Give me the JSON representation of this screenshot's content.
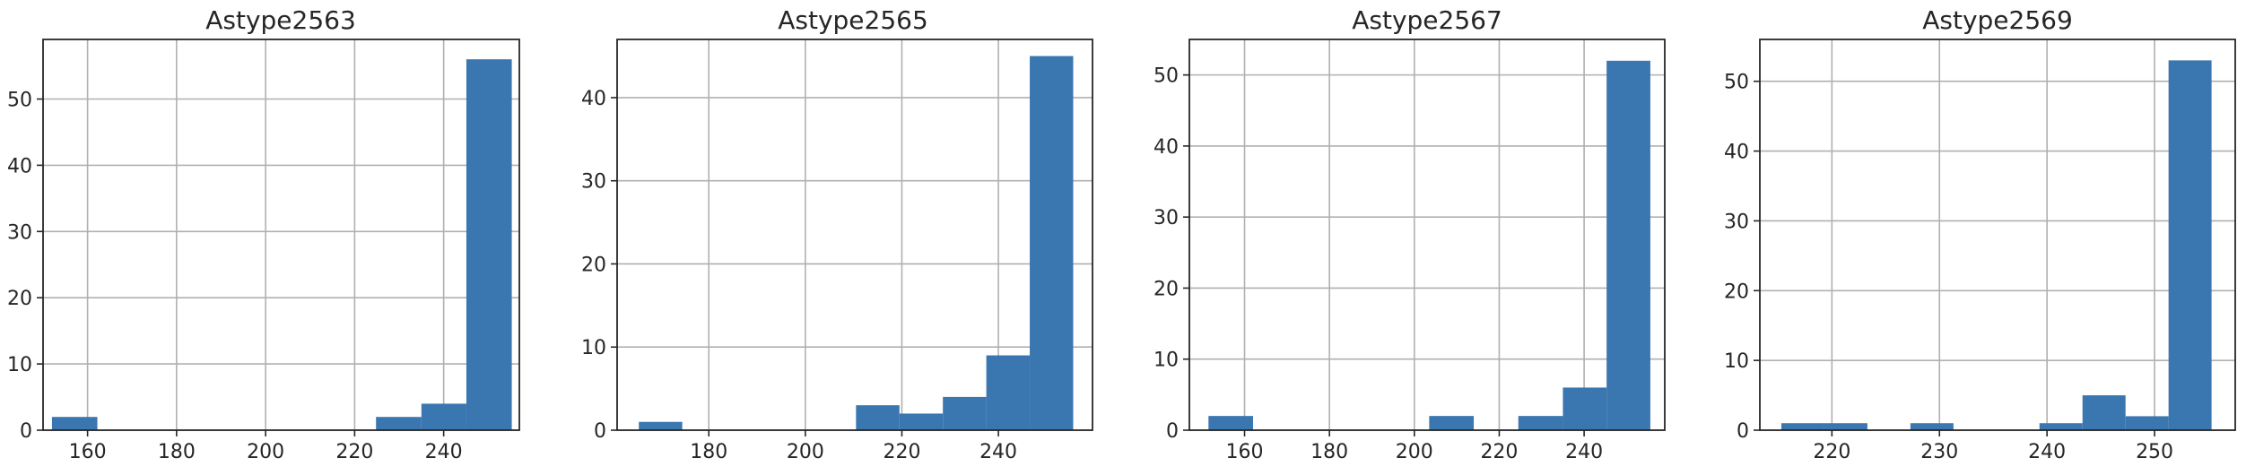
{
  "chart_data": [
    {
      "type": "bar",
      "title": "Astype2563",
      "xlim": [
        150,
        257
      ],
      "ylim": [
        0,
        59
      ],
      "xticks": [
        160,
        180,
        200,
        220,
        240,
        260
      ],
      "yticks": [
        0,
        10,
        20,
        30,
        40,
        50
      ],
      "bins": [
        {
          "x0": 152,
          "x1": 162.2,
          "value": 2
        },
        {
          "x0": 224.8,
          "x1": 235,
          "value": 2
        },
        {
          "x0": 235,
          "x1": 245.1,
          "value": 4
        },
        {
          "x0": 245.1,
          "x1": 255.3,
          "value": 56
        }
      ],
      "grid": true,
      "color": "#3a76b0"
    },
    {
      "type": "bar",
      "title": "Astype2565",
      "xlim": [
        161,
        259.5
      ],
      "ylim": [
        0,
        47
      ],
      "xticks": [
        180,
        200,
        220,
        240
      ],
      "yticks": [
        0,
        10,
        20,
        30,
        40
      ],
      "bins": [
        {
          "x0": 165.5,
          "x1": 174.5,
          "value": 1
        },
        {
          "x0": 210.5,
          "x1": 219.5,
          "value": 3
        },
        {
          "x0": 219.5,
          "x1": 228.5,
          "value": 2
        },
        {
          "x0": 228.5,
          "x1": 237.5,
          "value": 4
        },
        {
          "x0": 237.5,
          "x1": 246.5,
          "value": 9
        },
        {
          "x0": 246.5,
          "x1": 255.5,
          "value": 45
        }
      ],
      "grid": true,
      "color": "#3a76b0"
    },
    {
      "type": "bar",
      "title": "Astype2567",
      "xlim": [
        147,
        259
      ],
      "ylim": [
        0,
        55
      ],
      "xticks": [
        160,
        180,
        200,
        220,
        240,
        260
      ],
      "yticks": [
        0,
        10,
        20,
        30,
        40,
        50
      ],
      "bins": [
        {
          "x0": 151.5,
          "x1": 162,
          "value": 2
        },
        {
          "x0": 203.5,
          "x1": 214,
          "value": 2
        },
        {
          "x0": 224.5,
          "x1": 235,
          "value": 2
        },
        {
          "x0": 235,
          "x1": 245.3,
          "value": 6
        },
        {
          "x0": 245.3,
          "x1": 255.6,
          "value": 52
        }
      ],
      "grid": true,
      "color": "#3a76b0"
    },
    {
      "type": "bar",
      "title": "Astype2569",
      "xlim": [
        213.3,
        257.5
      ],
      "ylim": [
        0,
        56
      ],
      "xticks": [
        220,
        230,
        240,
        250
      ],
      "yticks": [
        0,
        10,
        20,
        30,
        40,
        50
      ],
      "bins": [
        {
          "x0": 215.3,
          "x1": 219.3,
          "value": 1
        },
        {
          "x0": 219.3,
          "x1": 223.3,
          "value": 1
        },
        {
          "x0": 227.3,
          "x1": 231.3,
          "value": 1
        },
        {
          "x0": 239.3,
          "x1": 243.3,
          "value": 1
        },
        {
          "x0": 243.3,
          "x1": 247.3,
          "value": 5
        },
        {
          "x0": 247.3,
          "x1": 251.3,
          "value": 2
        },
        {
          "x0": 251.3,
          "x1": 255.3,
          "value": 53
        }
      ],
      "grid": true,
      "color": "#3a76b0"
    }
  ]
}
